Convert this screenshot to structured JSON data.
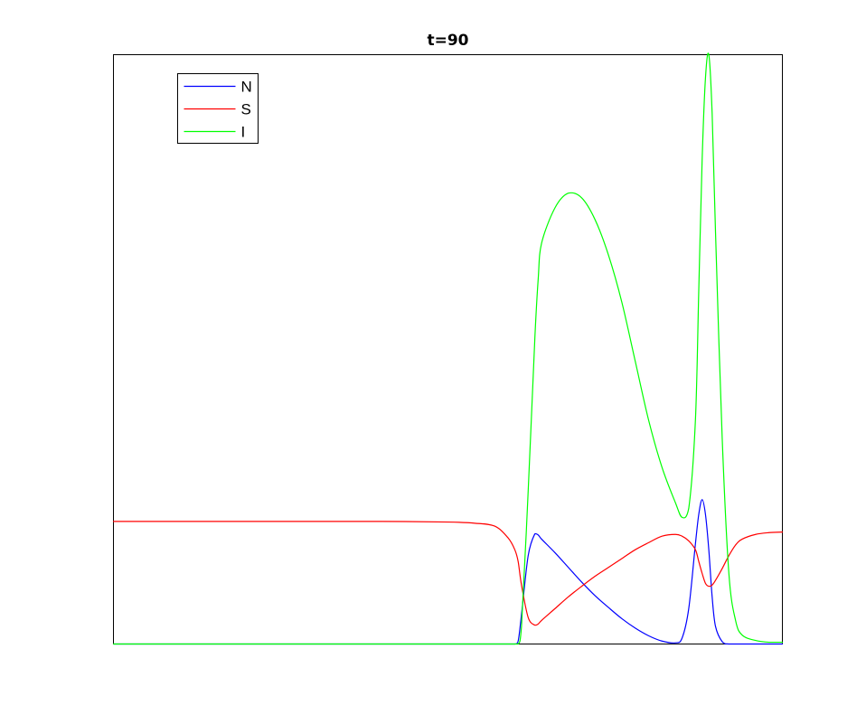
{
  "chart_data": {
    "type": "line",
    "title": "t=90",
    "xlabel": "",
    "ylabel": "",
    "xlim": [
      0,
      1
    ],
    "ylim": [
      0,
      1
    ],
    "grid": false,
    "legend_position": "top-left",
    "x": [
      0.0,
      0.1,
      0.2,
      0.3,
      0.4,
      0.5,
      0.54,
      0.57,
      0.59,
      0.6,
      0.605,
      0.61,
      0.62,
      0.63,
      0.635,
      0.64,
      0.66,
      0.68,
      0.7,
      0.72,
      0.74,
      0.76,
      0.78,
      0.8,
      0.82,
      0.84,
      0.85,
      0.86,
      0.87,
      0.875,
      0.88,
      0.885,
      0.89,
      0.895,
      0.9,
      0.91,
      0.92,
      0.93,
      0.94,
      0.96,
      0.98,
      1.0
    ],
    "series": [
      {
        "name": "N",
        "color": "#0000ff",
        "values": [
          0.0,
          0.0,
          0.0,
          0.0,
          0.0,
          0.0,
          0.0,
          0.0,
          0.0,
          0.0,
          0.005,
          0.05,
          0.15,
          0.187,
          0.185,
          0.178,
          0.155,
          0.13,
          0.105,
          0.082,
          0.062,
          0.043,
          0.027,
          0.014,
          0.005,
          0.002,
          0.01,
          0.06,
          0.17,
          0.22,
          0.245,
          0.22,
          0.16,
          0.08,
          0.03,
          0.004,
          0.0,
          0.0,
          0.0,
          0.0,
          0.0,
          0.0
        ]
      },
      {
        "name": "S",
        "color": "#ff0000",
        "values": [
          0.208,
          0.208,
          0.208,
          0.208,
          0.208,
          0.207,
          0.205,
          0.2,
          0.18,
          0.16,
          0.14,
          0.1,
          0.045,
          0.032,
          0.034,
          0.04,
          0.06,
          0.08,
          0.098,
          0.115,
          0.13,
          0.145,
          0.16,
          0.172,
          0.183,
          0.186,
          0.183,
          0.175,
          0.16,
          0.14,
          0.12,
          0.103,
          0.098,
          0.1,
          0.108,
          0.128,
          0.15,
          0.168,
          0.178,
          0.186,
          0.189,
          0.19
        ]
      },
      {
        "name": "I",
        "color": "#00ff00",
        "values": [
          0.0,
          0.0,
          0.0,
          0.0,
          0.0,
          0.0,
          0.0,
          0.0,
          0.0,
          0.0,
          0.0,
          0.03,
          0.26,
          0.52,
          0.62,
          0.68,
          0.74,
          0.765,
          0.757,
          0.72,
          0.66,
          0.58,
          0.48,
          0.38,
          0.3,
          0.24,
          0.215,
          0.23,
          0.38,
          0.6,
          0.82,
          0.96,
          1.0,
          0.9,
          0.7,
          0.35,
          0.12,
          0.04,
          0.015,
          0.006,
          0.003,
          0.003
        ]
      }
    ]
  }
}
